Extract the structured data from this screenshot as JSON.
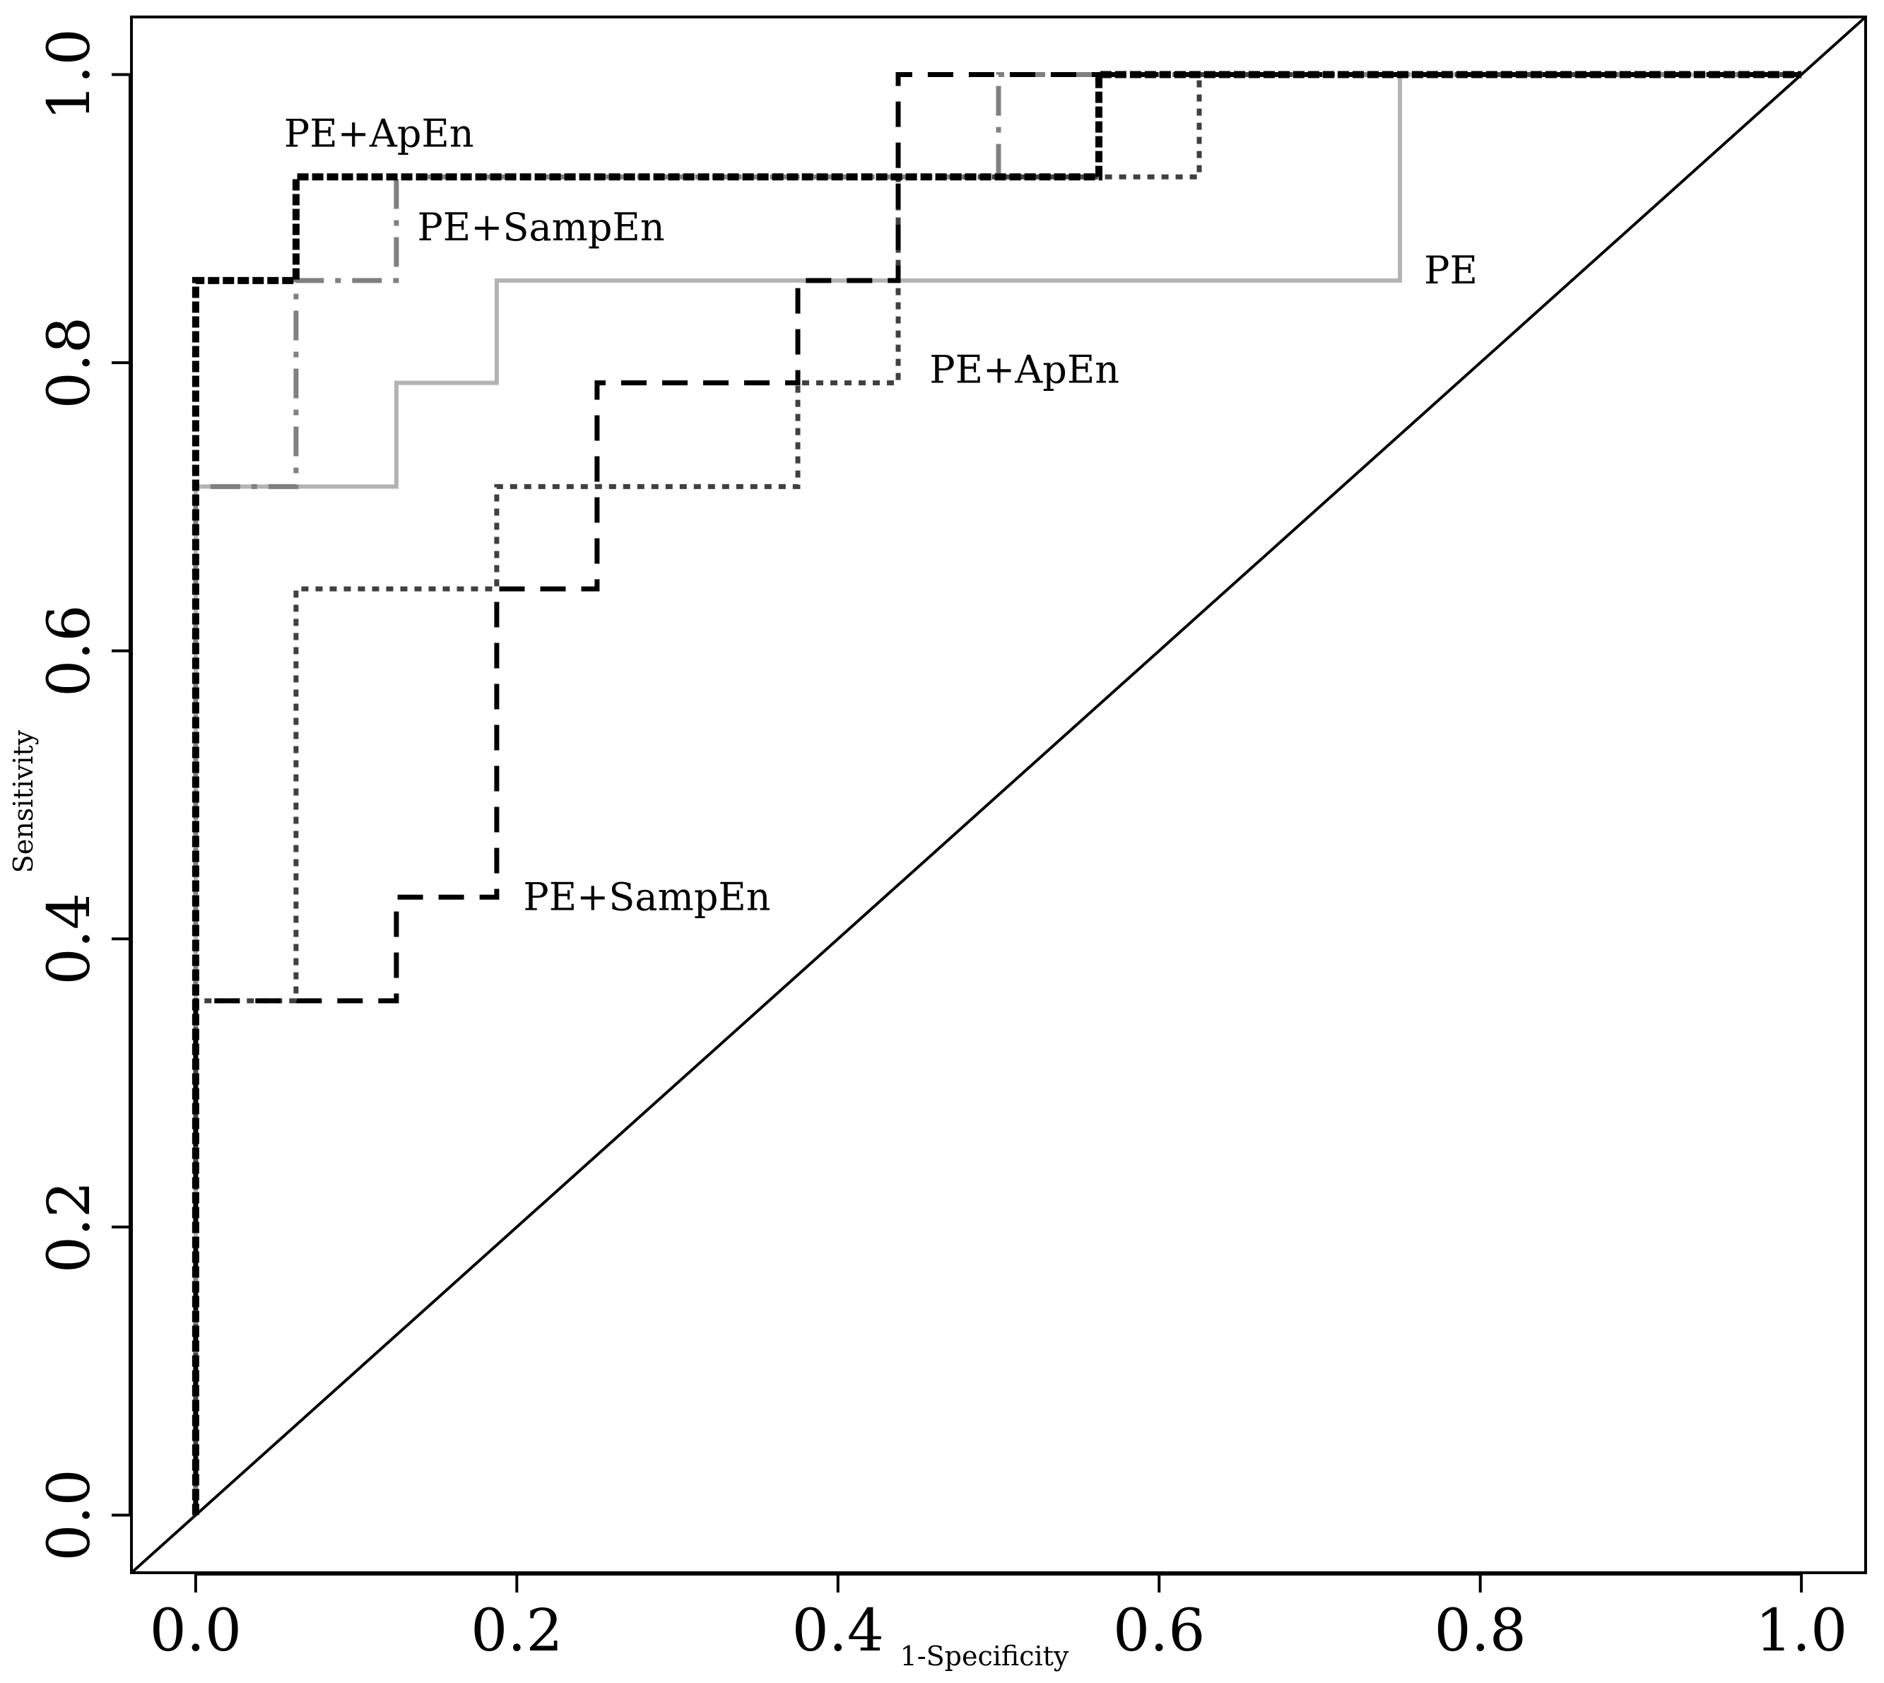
{
  "chart_data": {
    "type": "line",
    "title": "",
    "xlabel": "1-Specificity",
    "ylabel": "Sensitivity",
    "xlim": [
      -0.04,
      1.04
    ],
    "ylim": [
      -0.04,
      1.04
    ],
    "grid": false,
    "legend": "none",
    "x_ticks": [
      {
        "value": 0.0,
        "label": "0.0"
      },
      {
        "value": 0.2,
        "label": "0.2"
      },
      {
        "value": 0.4,
        "label": "0.4"
      },
      {
        "value": 0.6,
        "label": "0.6"
      },
      {
        "value": 0.8,
        "label": "0.8"
      },
      {
        "value": 1.0,
        "label": "1.0"
      }
    ],
    "y_ticks": [
      {
        "value": 0.0,
        "label": "0.0"
      },
      {
        "value": 0.2,
        "label": "0.2"
      },
      {
        "value": 0.4,
        "label": "0.4"
      },
      {
        "value": 0.6,
        "label": "0.6"
      },
      {
        "value": 0.8,
        "label": "0.8"
      },
      {
        "value": 1.0,
        "label": "1.0"
      }
    ],
    "reference_line": {
      "x": [
        -0.04,
        1.04
      ],
      "y": [
        -0.04,
        1.04
      ],
      "color": "#000000"
    },
    "series": [
      {
        "color": "#b3b3b3",
        "dash": "solid",
        "width": 6,
        "x": [
          0,
          0,
          0.125,
          0.125,
          0.1875,
          0.1875,
          0.75,
          0.75,
          1.0
        ],
        "y": [
          0,
          0.714,
          0.714,
          0.786,
          0.786,
          0.857,
          0.857,
          1.0,
          1.0
        ]
      },
      {
        "color": "#808080",
        "dash": "longdash-dot",
        "width": 7,
        "x": [
          0,
          0,
          0.0625,
          0.0625,
          0.125,
          0.125,
          0.5,
          0.5,
          1.0
        ],
        "y": [
          0,
          0.714,
          0.714,
          0.857,
          0.857,
          0.929,
          0.929,
          1.0,
          1.0
        ]
      },
      {
        "color": "#404040",
        "dash": "dotted",
        "width": 7,
        "x": [
          0,
          0,
          0.0625,
          0.0625,
          0.1875,
          0.1875,
          0.375,
          0.375,
          0.4375,
          0.4375,
          0.625,
          0.625,
          1.0
        ],
        "y": [
          0,
          0.357,
          0.357,
          0.643,
          0.643,
          0.714,
          0.714,
          0.786,
          0.786,
          0.929,
          0.929,
          1.0,
          1.0
        ]
      },
      {
        "color": "#000000",
        "dash": "dashed",
        "width": 7,
        "x": [
          0,
          0,
          0.125,
          0.125,
          0.1875,
          0.1875,
          0.25,
          0.25,
          0.375,
          0.375,
          0.4375,
          0.4375,
          1.0
        ],
        "y": [
          0,
          0.357,
          0.357,
          0.429,
          0.429,
          0.643,
          0.643,
          0.786,
          0.786,
          0.857,
          0.857,
          1.0,
          1.0
        ]
      },
      {
        "color": "#000000",
        "dash": "dense-dashed",
        "width": 10,
        "x": [
          0,
          0,
          0.0625,
          0.0625,
          0.5625,
          0.5625,
          1.0
        ],
        "y": [
          0,
          0.857,
          0.857,
          0.929,
          0.929,
          1.0,
          1.0
        ]
      }
    ],
    "annotations": [
      {
        "text": "PE+ApEn",
        "x": 0.055,
        "y": 0.95
      },
      {
        "text": "PE+SampEn",
        "x": 0.138,
        "y": 0.885
      },
      {
        "text": "PE",
        "x": 0.765,
        "y": 0.855
      },
      {
        "text": "PE+ApEn",
        "x": 0.457,
        "y": 0.786
      },
      {
        "text": "PE+SampEn",
        "x": 0.204,
        "y": 0.42
      }
    ]
  }
}
